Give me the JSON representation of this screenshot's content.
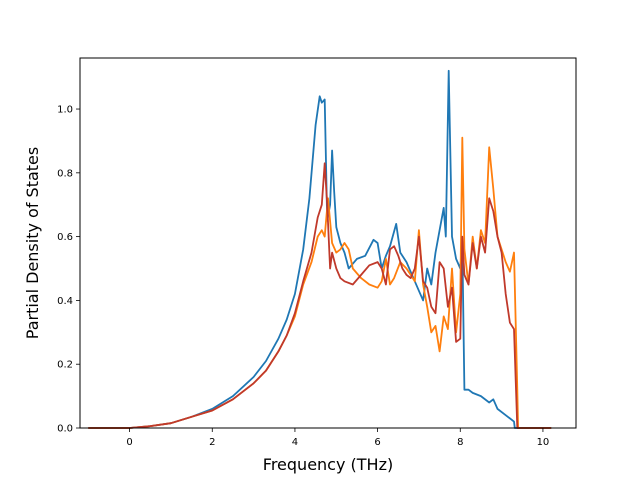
{
  "chart_data": {
    "type": "line",
    "title": "",
    "xlabel": "Frequency (THz)",
    "ylabel": "Partial Density of States",
    "xlim": [
      -1.2,
      10.8
    ],
    "ylim": [
      0.0,
      1.16
    ],
    "xticks": [
      0,
      2,
      4,
      6,
      8,
      10
    ],
    "yticks": [
      0.0,
      0.2,
      0.4,
      0.6,
      0.8,
      1.0
    ],
    "xtick_labels": [
      "0",
      "2",
      "4",
      "6",
      "8",
      "10"
    ],
    "ytick_labels": [
      "0.0",
      "0.2",
      "0.4",
      "0.6",
      "0.8",
      "1.0"
    ],
    "grid": false,
    "legend": "none",
    "series": [
      {
        "color": "#1f77b4",
        "x": [
          -1.0,
          0.0,
          0.5,
          1.0,
          1.5,
          2.0,
          2.5,
          3.0,
          3.3,
          3.6,
          3.8,
          4.0,
          4.2,
          4.35,
          4.5,
          4.6,
          4.65,
          4.72,
          4.78,
          4.85,
          4.9,
          4.95,
          5.0,
          5.1,
          5.2,
          5.3,
          5.5,
          5.7,
          5.9,
          6.0,
          6.1,
          6.2,
          6.3,
          6.45,
          6.55,
          6.7,
          6.9,
          7.0,
          7.1,
          7.2,
          7.3,
          7.4,
          7.5,
          7.6,
          7.65,
          7.72,
          7.8,
          7.9,
          8.0,
          8.05,
          8.1,
          8.2,
          8.3,
          8.5,
          8.7,
          8.8,
          8.9,
          9.1,
          9.2,
          9.3,
          9.32,
          9.4,
          10.2
        ],
        "y": [
          0.0,
          0.0,
          0.006,
          0.015,
          0.035,
          0.06,
          0.1,
          0.16,
          0.21,
          0.28,
          0.34,
          0.42,
          0.56,
          0.72,
          0.95,
          1.04,
          1.02,
          1.03,
          0.65,
          0.7,
          0.87,
          0.74,
          0.63,
          0.58,
          0.55,
          0.5,
          0.53,
          0.54,
          0.59,
          0.58,
          0.5,
          0.54,
          0.57,
          0.64,
          0.55,
          0.52,
          0.46,
          0.43,
          0.4,
          0.5,
          0.45,
          0.55,
          0.62,
          0.69,
          0.6,
          1.12,
          0.6,
          0.53,
          0.5,
          0.58,
          0.12,
          0.12,
          0.11,
          0.1,
          0.08,
          0.09,
          0.06,
          0.04,
          0.03,
          0.02,
          0.0,
          0.0,
          0.0
        ]
      },
      {
        "color": "#ff7f0e",
        "x": [
          -1.0,
          0.0,
          0.5,
          1.0,
          1.5,
          2.0,
          2.5,
          3.0,
          3.3,
          3.6,
          3.8,
          4.0,
          4.2,
          4.4,
          4.55,
          4.65,
          4.72,
          4.8,
          4.9,
          5.0,
          5.1,
          5.2,
          5.3,
          5.4,
          5.6,
          5.8,
          6.0,
          6.1,
          6.2,
          6.3,
          6.4,
          6.55,
          6.7,
          6.8,
          6.9,
          7.0,
          7.1,
          7.2,
          7.3,
          7.4,
          7.5,
          7.6,
          7.7,
          7.8,
          7.9,
          8.0,
          8.05,
          8.1,
          8.2,
          8.3,
          8.4,
          8.5,
          8.6,
          8.7,
          8.8,
          8.9,
          9.0,
          9.1,
          9.2,
          9.3,
          9.38,
          9.4,
          10.2
        ],
        "y": [
          0.0,
          0.0,
          0.006,
          0.015,
          0.035,
          0.055,
          0.09,
          0.14,
          0.18,
          0.24,
          0.29,
          0.35,
          0.45,
          0.52,
          0.6,
          0.62,
          0.6,
          0.72,
          0.58,
          0.55,
          0.56,
          0.58,
          0.56,
          0.5,
          0.47,
          0.45,
          0.44,
          0.46,
          0.53,
          0.45,
          0.47,
          0.52,
          0.5,
          0.48,
          0.46,
          0.62,
          0.45,
          0.38,
          0.3,
          0.32,
          0.24,
          0.35,
          0.31,
          0.5,
          0.3,
          0.42,
          0.91,
          0.56,
          0.45,
          0.6,
          0.5,
          0.62,
          0.58,
          0.88,
          0.75,
          0.6,
          0.56,
          0.52,
          0.49,
          0.55,
          0.12,
          0.0,
          0.0
        ]
      },
      {
        "color": "#c0392b",
        "x": [
          -1.0,
          0.0,
          0.5,
          1.0,
          1.5,
          2.0,
          2.5,
          3.0,
          3.3,
          3.6,
          3.8,
          4.0,
          4.2,
          4.4,
          4.55,
          4.65,
          4.72,
          4.78,
          4.85,
          4.9,
          5.0,
          5.1,
          5.2,
          5.4,
          5.6,
          5.8,
          6.0,
          6.1,
          6.2,
          6.3,
          6.4,
          6.5,
          6.6,
          6.7,
          6.8,
          6.9,
          7.0,
          7.1,
          7.2,
          7.3,
          7.4,
          7.5,
          7.6,
          7.7,
          7.8,
          7.9,
          8.0,
          8.05,
          8.1,
          8.2,
          8.3,
          8.4,
          8.5,
          8.6,
          8.7,
          8.8,
          8.9,
          9.0,
          9.1,
          9.2,
          9.3,
          9.38,
          10.2
        ],
        "y": [
          0.0,
          0.0,
          0.006,
          0.015,
          0.035,
          0.055,
          0.09,
          0.14,
          0.18,
          0.24,
          0.29,
          0.36,
          0.46,
          0.55,
          0.66,
          0.7,
          0.83,
          0.7,
          0.5,
          0.55,
          0.5,
          0.47,
          0.46,
          0.45,
          0.48,
          0.51,
          0.52,
          0.5,
          0.45,
          0.56,
          0.57,
          0.54,
          0.5,
          0.48,
          0.47,
          0.5,
          0.6,
          0.46,
          0.44,
          0.38,
          0.36,
          0.52,
          0.5,
          0.38,
          0.44,
          0.27,
          0.28,
          0.6,
          0.48,
          0.45,
          0.58,
          0.5,
          0.6,
          0.55,
          0.72,
          0.68,
          0.6,
          0.55,
          0.42,
          0.33,
          0.31,
          0.0,
          0.0
        ]
      }
    ]
  }
}
